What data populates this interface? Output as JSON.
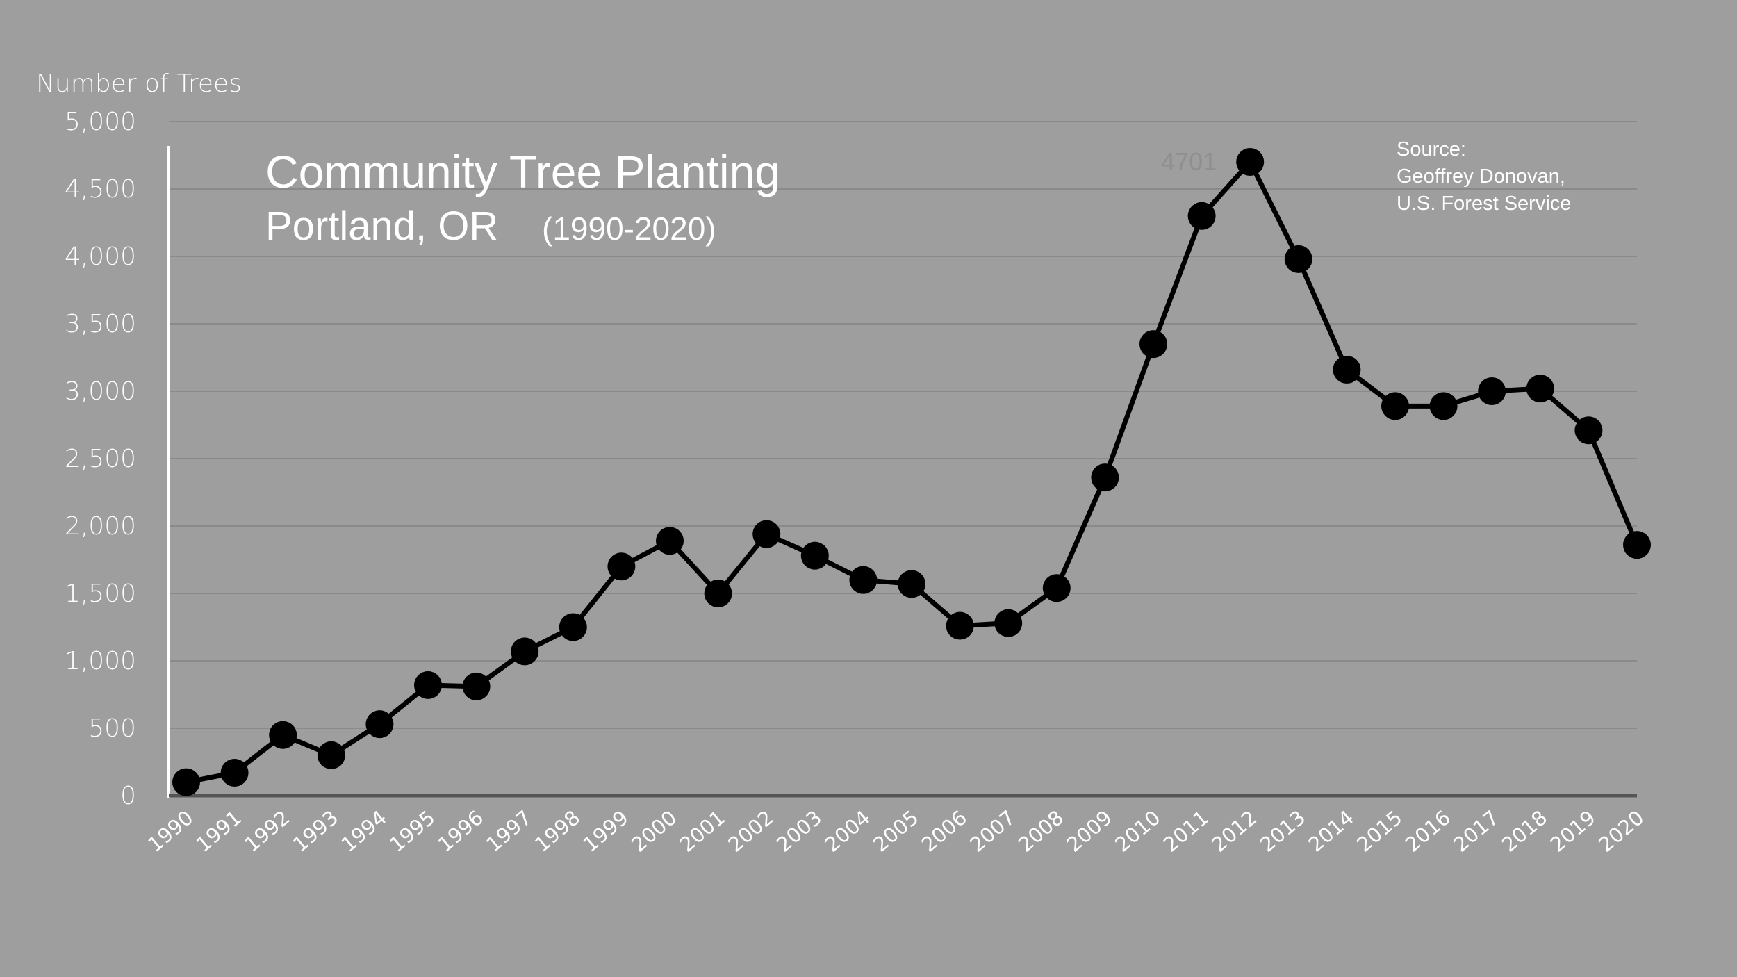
{
  "chart_data": {
    "type": "line",
    "title": "Community Tree Planting",
    "subtitle": "Portland, OR",
    "subtitle_range": "(1990-2020)",
    "ylabel": "Number of Trees",
    "xlabel": "",
    "source": [
      "Source:",
      "Geoffrey Donovan,",
      "U.S. Forest Service"
    ],
    "ylim": [
      0,
      5000
    ],
    "y_ticks": [
      0,
      500,
      1000,
      1500,
      2000,
      2500,
      3000,
      3500,
      4000,
      4500,
      5000
    ],
    "y_tick_labels": [
      "0",
      "500",
      "1,000",
      "1,500",
      "2,000",
      "2,500",
      "3,000",
      "3,500",
      "4,000",
      "4,500",
      "5,000"
    ],
    "categories": [
      "1990",
      "1991",
      "1992",
      "1993",
      "1994",
      "1995",
      "1996",
      "1997",
      "1998",
      "1999",
      "2000",
      "2001",
      "2002",
      "2003",
      "2004",
      "2005",
      "2006",
      "2007",
      "2008",
      "2009",
      "2010",
      "2011",
      "2012",
      "2013",
      "2014",
      "2015",
      "2016",
      "2017",
      "2018",
      "2019",
      "2020"
    ],
    "series": [
      {
        "values": [
          100,
          170,
          450,
          300,
          530,
          820,
          810,
          1070,
          1250,
          1700,
          1890,
          1500,
          1940,
          1780,
          1600,
          1570,
          1260,
          1280,
          1540,
          2360,
          3350,
          4300,
          4701,
          3980,
          3160,
          2890,
          2890,
          3000,
          3020,
          2710,
          1860
        ]
      }
    ],
    "annotations": [
      {
        "category": "2012",
        "text": "4701"
      }
    ],
    "grid": true,
    "legend": "none"
  },
  "colors": {
    "background": "#9e9e9e",
    "line": "#000000",
    "text": "#ffffff",
    "grid": "#8a8a8a"
  }
}
